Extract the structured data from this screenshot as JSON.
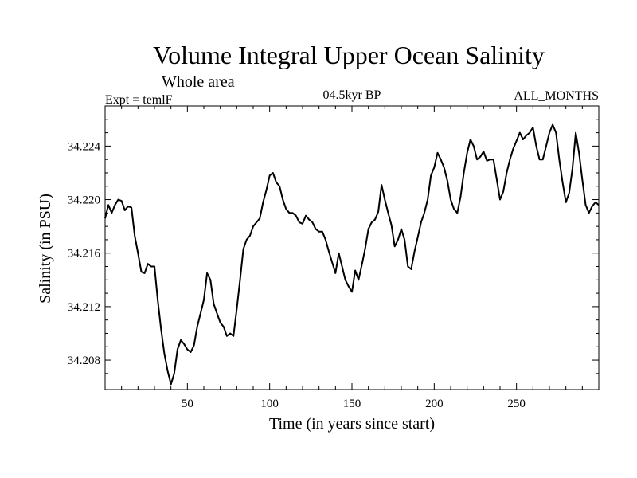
{
  "chart_data": {
    "type": "line",
    "title": "Volume Integral Upper Ocean Salinity",
    "subtitle": "Whole area",
    "experiment": "Expt = temlF",
    "period": "04.5kyr BP",
    "months": "ALL_MONTHS",
    "xlabel": "Time (in years since start)",
    "ylabel": "Salinity (in PSU)",
    "xlim": [
      0,
      300
    ],
    "ylim": [
      34.2058,
      34.227
    ],
    "xticks": [
      {
        "value": 50,
        "label": "50"
      },
      {
        "value": 100,
        "label": "100"
      },
      {
        "value": 150,
        "label": "150"
      },
      {
        "value": 200,
        "label": "200"
      },
      {
        "value": 250,
        "label": "250"
      }
    ],
    "yticks": [
      {
        "value": 34.208,
        "label": "34.208"
      },
      {
        "value": 34.212,
        "label": "34.212"
      },
      {
        "value": 34.216,
        "label": "34.216"
      },
      {
        "value": 34.22,
        "label": "34.220"
      },
      {
        "value": 34.224,
        "label": "34.224"
      }
    ],
    "series": [
      {
        "name": "Salinity",
        "x": [
          0,
          2,
          4,
          6,
          8,
          10,
          12,
          14,
          16,
          18,
          20,
          22,
          24,
          26,
          28,
          30,
          32,
          34,
          36,
          38,
          40,
          42,
          44,
          46,
          48,
          50,
          52,
          54,
          56,
          58,
          60,
          62,
          64,
          66,
          68,
          70,
          72,
          74,
          76,
          78,
          80,
          82,
          84,
          86,
          88,
          90,
          92,
          94,
          96,
          98,
          100,
          102,
          104,
          106,
          108,
          110,
          112,
          114,
          116,
          118,
          120,
          122,
          124,
          126,
          128,
          130,
          132,
          134,
          136,
          138,
          140,
          142,
          144,
          146,
          148,
          150,
          152,
          154,
          156,
          158,
          160,
          162,
          164,
          166,
          168,
          170,
          172,
          174,
          176,
          178,
          180,
          182,
          184,
          186,
          188,
          190,
          192,
          194,
          196,
          198,
          200,
          202,
          204,
          206,
          208,
          210,
          212,
          214,
          216,
          218,
          220,
          222,
          224,
          226,
          228,
          230,
          232,
          234,
          236,
          238,
          240,
          242,
          244,
          246,
          248,
          250,
          252,
          254,
          256,
          258,
          260,
          262,
          264,
          266,
          268,
          270,
          272,
          274,
          276,
          278,
          280,
          282,
          284,
          286,
          288,
          290,
          292,
          294,
          296,
          298,
          300
        ],
        "values": [
          34.2186,
          34.2196,
          34.219,
          34.2196,
          34.22,
          34.2199,
          34.2192,
          34.2195,
          34.2194,
          34.2173,
          34.216,
          34.2146,
          34.2145,
          34.2152,
          34.215,
          34.215,
          34.2125,
          34.2103,
          34.2085,
          34.2072,
          34.2062,
          34.207,
          34.2088,
          34.2095,
          34.2092,
          34.2088,
          34.2086,
          34.2091,
          34.2105,
          34.2115,
          34.2125,
          34.2145,
          34.214,
          34.2122,
          34.2115,
          34.2108,
          34.2105,
          34.2098,
          34.21,
          34.2098,
          34.2118,
          34.214,
          34.2163,
          34.217,
          34.2173,
          34.218,
          34.2183,
          34.2186,
          34.2198,
          34.2207,
          34.2218,
          34.222,
          34.2213,
          34.221,
          34.22,
          34.2193,
          34.219,
          34.219,
          34.2188,
          34.2183,
          34.2182,
          34.2188,
          34.2185,
          34.2183,
          34.2178,
          34.2176,
          34.2176,
          34.217,
          34.2161,
          34.2153,
          34.2145,
          34.216,
          34.215,
          34.214,
          34.2135,
          34.2131,
          34.2147,
          34.214,
          34.2151,
          34.2163,
          34.2178,
          34.2183,
          34.2185,
          34.2191,
          34.2211,
          34.22,
          34.219,
          34.2181,
          34.2165,
          34.217,
          34.2178,
          34.217,
          34.215,
          34.2148,
          34.2161,
          34.2172,
          34.2183,
          34.219,
          34.22,
          34.2218,
          34.2224,
          34.2235,
          34.223,
          34.2224,
          34.2214,
          34.22,
          34.2193,
          34.219,
          34.2202,
          34.222,
          34.2235,
          34.2245,
          34.224,
          34.223,
          34.2232,
          34.2236,
          34.2229,
          34.223,
          34.223,
          34.2215,
          34.22,
          34.2206,
          34.222,
          34.223,
          34.2238,
          34.2244,
          34.225,
          34.2245,
          34.2248,
          34.225,
          34.2254,
          34.224,
          34.223,
          34.223,
          34.224,
          34.225,
          34.2256,
          34.225,
          34.223,
          34.2213,
          34.2198,
          34.2205,
          34.2223,
          34.225,
          34.2235,
          34.2215,
          34.2196,
          34.219,
          34.2195,
          34.2198,
          34.2196
        ]
      }
    ]
  }
}
